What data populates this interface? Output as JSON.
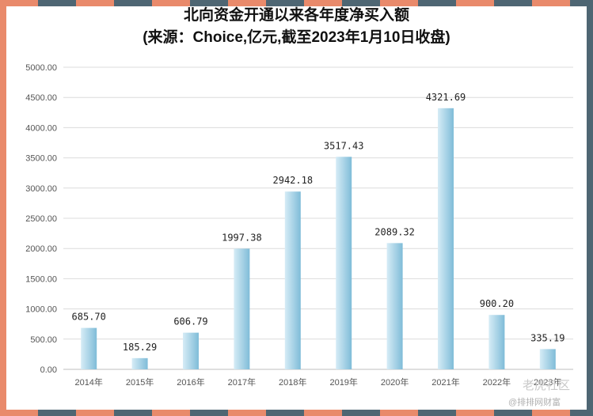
{
  "chart_data": {
    "type": "bar",
    "title": "北向资金开通以来各年度净买入额",
    "subtitle": "(来源：Choice,亿元,截至2023年1月10日收盘)",
    "categories": [
      "2014年",
      "2015年",
      "2016年",
      "2017年",
      "2018年",
      "2019年",
      "2020年",
      "2021年",
      "2022年",
      "2023年"
    ],
    "values": [
      685.7,
      185.29,
      606.79,
      1997.38,
      2942.18,
      3517.43,
      2089.32,
      4321.69,
      900.2,
      335.19
    ],
    "value_labels": [
      "685.70",
      "185.29",
      "606.79",
      "1997.38",
      "2942.18",
      "3517.43",
      "2089.32",
      "4321.69",
      "900.20",
      "335.19"
    ],
    "y_ticks": [
      "0.00",
      "500.00",
      "1000.00",
      "1500.00",
      "2000.00",
      "2500.00",
      "3000.00",
      "3500.00",
      "4000.00",
      "4500.00",
      "5000.00"
    ],
    "ylim": [
      0,
      5000
    ],
    "grid": true,
    "bar_color_light": "#d6ecf6",
    "bar_color_dark": "#7fbcd8"
  },
  "watermark": {
    "line1": "老虎社区",
    "line2": "@排排网财富"
  }
}
